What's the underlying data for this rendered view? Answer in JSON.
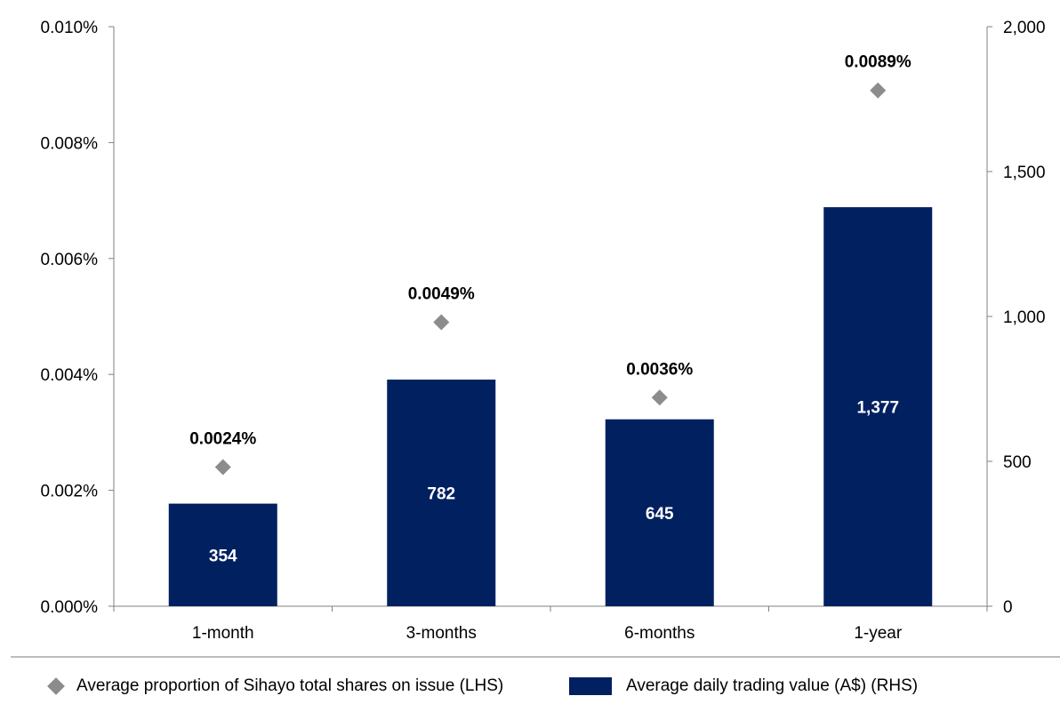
{
  "chart_data": {
    "type": "bar",
    "categories": [
      "1-month",
      "3-months",
      "6-months",
      "1-year"
    ],
    "series": [
      {
        "name": "Average daily trading value (A$) (RHS)",
        "type": "bar",
        "axis": "right",
        "values": [
          354,
          782,
          645,
          1377
        ],
        "labels": [
          "354",
          "782",
          "645",
          "1,377"
        ],
        "color": "#002060"
      },
      {
        "name": "Average proportion of Sihayo total shares on issue (LHS)",
        "type": "scatter",
        "marker": "diamond",
        "axis": "left",
        "values": [
          0.0024,
          0.0049,
          0.0036,
          0.0089
        ],
        "labels": [
          "0.0024%",
          "0.0049%",
          "0.0036%",
          "0.0089%"
        ],
        "color": "#8c8c8c"
      }
    ],
    "y_left": {
      "lim": [
        0,
        0.01
      ],
      "ticks": [
        0,
        0.002,
        0.004,
        0.006,
        0.008,
        0.01
      ],
      "tick_labels": [
        "0.000%",
        "0.002%",
        "0.004%",
        "0.006%",
        "0.008%",
        "0.010%"
      ]
    },
    "y_right": {
      "lim": [
        0,
        2000
      ],
      "ticks": [
        0,
        500,
        1000,
        1500,
        2000
      ],
      "tick_labels": [
        "0",
        "500",
        "1,000",
        "1,500",
        "2,000"
      ]
    },
    "grid": false,
    "legend_position": "bottom"
  },
  "legend": {
    "items": [
      {
        "label": "Average proportion of Sihayo total shares on issue (LHS)",
        "marker": "diamond",
        "color": "#8c8c8c"
      },
      {
        "label": "Average daily trading value (A$) (RHS)",
        "marker": "box",
        "color": "#002060"
      }
    ]
  }
}
